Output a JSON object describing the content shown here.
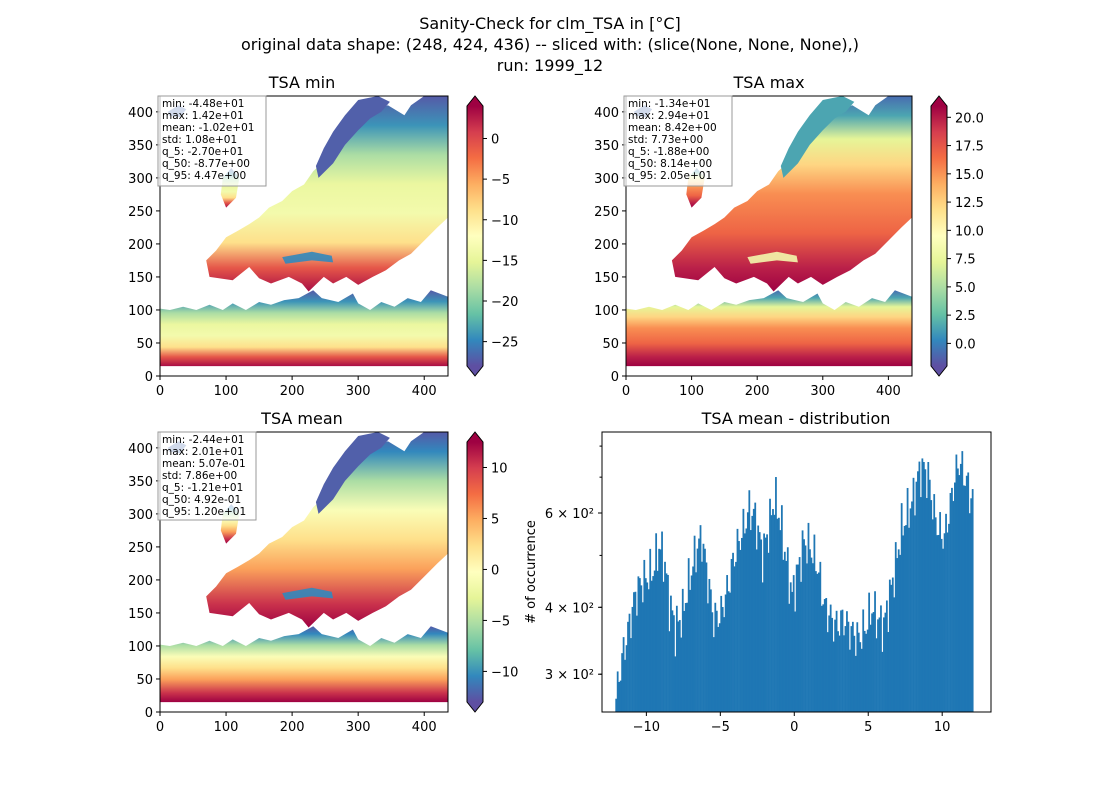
{
  "suptitle": [
    "Sanity-Check for clm_TSA in [°C]",
    "original data shape: (248, 424, 436) -- sliced with: (slice(None, None, None),)",
    "run: 1999_12"
  ],
  "colors": {
    "hist_bar": "#1f77b4",
    "stats_box_border": "#999999",
    "colormap": [
      "#5e4fa2",
      "#3288bd",
      "#66c2a5",
      "#abdda4",
      "#e6f598",
      "#ffffbf",
      "#fee08b",
      "#fdae61",
      "#f46d43",
      "#d53e4f",
      "#9e0142"
    ]
  },
  "chart_data": [
    {
      "type": "heatmap",
      "title": "TSA min",
      "colormap": "Spectral_r",
      "xlim": [
        0,
        436
      ],
      "ylim": [
        0,
        424
      ],
      "xticks": [
        0,
        100,
        200,
        300,
        400
      ],
      "yticks": [
        0,
        50,
        100,
        150,
        200,
        250,
        300,
        350,
        400
      ],
      "colorbar": {
        "range": [
          -28,
          4
        ],
        "ticks": [
          0,
          -5,
          -10,
          -15,
          -20,
          -25
        ],
        "extend": "both"
      },
      "stats": [
        "min: -4.48e+01",
        "max: 1.42e+01",
        "mean: -1.02e+01",
        "std: 1.08e+01",
        "q_5: -2.70e+01",
        "q_50: -8.77e+00",
        "q_95: 4.47e+00"
      ]
    },
    {
      "type": "heatmap",
      "title": "TSA max",
      "colormap": "Spectral_r",
      "xlim": [
        0,
        436
      ],
      "ylim": [
        0,
        424
      ],
      "xticks": [
        0,
        100,
        200,
        300,
        400
      ],
      "yticks": [
        0,
        50,
        100,
        150,
        200,
        250,
        300,
        350,
        400
      ],
      "colorbar": {
        "range": [
          -2,
          21
        ],
        "ticks": [
          20.0,
          17.5,
          15.0,
          12.5,
          10.0,
          7.5,
          5.0,
          2.5,
          0.0
        ],
        "extend": "both"
      },
      "stats": [
        "min: -1.34e+01",
        "max: 2.94e+01",
        "mean: 8.42e+00",
        "std: 7.73e+00",
        "q_5: -1.88e+00",
        "q_50: 8.14e+00",
        "q_95: 2.05e+01"
      ]
    },
    {
      "type": "heatmap",
      "title": "TSA mean",
      "colormap": "Spectral_r",
      "xlim": [
        0,
        436
      ],
      "ylim": [
        0,
        424
      ],
      "xticks": [
        0,
        100,
        200,
        300,
        400
      ],
      "yticks": [
        0,
        50,
        100,
        150,
        200,
        250,
        300,
        350,
        400
      ],
      "colorbar": {
        "range": [
          -13,
          12.5
        ],
        "ticks": [
          10,
          5,
          0,
          -5,
          -10
        ],
        "extend": "both"
      },
      "stats": [
        "min: -2.44e+01",
        "max: 2.01e+01",
        "mean: 5.07e-01",
        "std: 7.86e+00",
        "q_5: -1.21e+01",
        "q_50: 4.92e-01",
        "q_95: 1.20e+01"
      ]
    },
    {
      "type": "bar",
      "title": "TSA mean - distribution",
      "ylabel": "# of occurrence",
      "yscale": "log",
      "xlim": [
        -13,
        13.3
      ],
      "ylim": [
        255,
        850
      ],
      "xticks": [
        -10,
        -5,
        0,
        5,
        10
      ],
      "yticks": [
        {
          "value": 300,
          "label": "3 × 10²"
        },
        {
          "value": 400,
          "label": "4 × 10²"
        },
        {
          "value": 600,
          "label": "6 × 10²"
        }
      ],
      "bin_start": -12.1,
      "bin_width": 0.1,
      "bin_count": 242,
      "envelope": [
        [
          -12.1,
          270
        ],
        [
          -11.8,
          310
        ],
        [
          -11.3,
          360
        ],
        [
          -10.8,
          420
        ],
        [
          -10.5,
          440
        ],
        [
          -10.2,
          450
        ],
        [
          -9.6,
          470
        ],
        [
          -9.2,
          520
        ],
        [
          -8.9,
          500
        ],
        [
          -8.5,
          410
        ],
        [
          -8.1,
          365
        ],
        [
          -7.6,
          390
        ],
        [
          -7.0,
          470
        ],
        [
          -6.6,
          520
        ],
        [
          -6.3,
          540
        ],
        [
          -5.9,
          450
        ],
        [
          -5.5,
          380
        ],
        [
          -5.0,
          390
        ],
        [
          -4.5,
          440
        ],
        [
          -4.1,
          500
        ],
        [
          -3.5,
          560
        ],
        [
          -3.1,
          610
        ],
        [
          -2.7,
          590
        ],
        [
          -2.2,
          500
        ],
        [
          -1.8,
          560
        ],
        [
          -1.4,
          640
        ],
        [
          -1.1,
          600
        ],
        [
          -0.6,
          490
        ],
        [
          -0.2,
          420
        ],
        [
          0.2,
          470
        ],
        [
          0.6,
          530
        ],
        [
          1.0,
          520
        ],
        [
          1.5,
          480
        ],
        [
          2.0,
          400
        ],
        [
          2.7,
          370
        ],
        [
          3.3,
          380
        ],
        [
          3.8,
          360
        ],
        [
          4.3,
          350
        ],
        [
          4.8,
          370
        ],
        [
          5.2,
          400
        ],
        [
          5.6,
          380
        ],
        [
          6.0,
          370
        ],
        [
          6.4,
          420
        ],
        [
          6.8,
          480
        ],
        [
          7.2,
          560
        ],
        [
          7.6,
          600
        ],
        [
          8.0,
          640
        ],
        [
          8.3,
          700
        ],
        [
          8.6,
          730
        ],
        [
          9.0,
          700
        ],
        [
          9.4,
          600
        ],
        [
          9.7,
          560
        ],
        [
          10.1,
          540
        ],
        [
          10.5,
          620
        ],
        [
          10.8,
          700
        ],
        [
          11.1,
          750
        ],
        [
          11.5,
          700
        ],
        [
          11.9,
          640
        ]
      ]
    }
  ]
}
